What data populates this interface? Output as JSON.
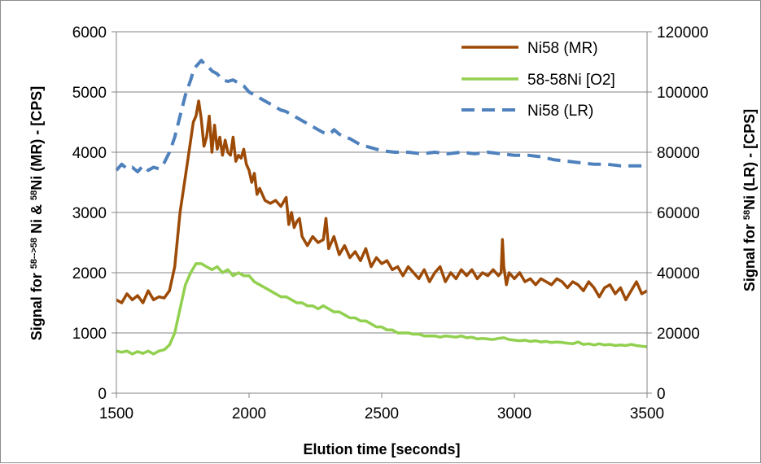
{
  "chart_data": {
    "type": "line",
    "xlabel": "Elution time [seconds]",
    "ylabel_left": [
      "Signal for ",
      "58-->58",
      " Ni  & ",
      "58",
      "Ni (MR) - [CPS]"
    ],
    "ylabel_right": [
      "Signal for ",
      "58",
      "Ni (LR) - [CPS]"
    ],
    "xlim": [
      1500,
      3500
    ],
    "ylim_left": [
      0,
      6000
    ],
    "ylim_right": [
      0,
      120000
    ],
    "x_ticks": [
      "1500",
      "2000",
      "2500",
      "3000",
      "3500"
    ],
    "y_ticks_left": [
      "0",
      "1000",
      "2000",
      "3000",
      "4000",
      "5000",
      "6000"
    ],
    "y_ticks_right": [
      "0",
      "20000",
      "40000",
      "60000",
      "80000",
      "100000",
      "120000"
    ],
    "grid": "horizontal",
    "legend_position": "top-right",
    "series": [
      {
        "name": "Ni58 (MR)",
        "axis": "left",
        "color": "#9c4a06",
        "style": "solid",
        "x": [
          1500,
          1520,
          1540,
          1560,
          1580,
          1600,
          1620,
          1640,
          1660,
          1680,
          1700,
          1720,
          1740,
          1760,
          1780,
          1790,
          1800,
          1810,
          1820,
          1830,
          1840,
          1850,
          1860,
          1870,
          1880,
          1890,
          1900,
          1910,
          1920,
          1930,
          1940,
          1950,
          1960,
          1970,
          1980,
          1990,
          2000,
          2010,
          2020,
          2030,
          2040,
          2060,
          2080,
          2100,
          2120,
          2140,
          2150,
          2160,
          2170,
          2180,
          2190,
          2200,
          2220,
          2240,
          2260,
          2280,
          2290,
          2300,
          2320,
          2340,
          2360,
          2380,
          2400,
          2420,
          2440,
          2460,
          2480,
          2500,
          2520,
          2540,
          2560,
          2580,
          2600,
          2620,
          2640,
          2660,
          2680,
          2700,
          2720,
          2740,
          2760,
          2780,
          2800,
          2820,
          2840,
          2860,
          2880,
          2900,
          2920,
          2940,
          2950,
          2955,
          2960,
          2970,
          2980,
          3000,
          3020,
          3040,
          3060,
          3080,
          3100,
          3120,
          3140,
          3160,
          3180,
          3200,
          3220,
          3240,
          3260,
          3280,
          3300,
          3320,
          3340,
          3360,
          3380,
          3400,
          3420,
          3440,
          3460,
          3480,
          3500
        ],
        "values": [
          1550,
          1500,
          1650,
          1550,
          1620,
          1500,
          1700,
          1550,
          1600,
          1580,
          1700,
          2100,
          3000,
          3600,
          4200,
          4500,
          4600,
          4850,
          4550,
          4100,
          4250,
          4600,
          4000,
          4450,
          4050,
          4250,
          3950,
          4200,
          4000,
          3950,
          4250,
          3850,
          3950,
          3900,
          4050,
          3800,
          3700,
          3500,
          3650,
          3300,
          3400,
          3200,
          3150,
          3200,
          3100,
          3250,
          2800,
          3000,
          2750,
          2850,
          2900,
          2600,
          2450,
          2600,
          2500,
          2550,
          2900,
          2400,
          2600,
          2300,
          2450,
          2250,
          2350,
          2200,
          2400,
          2100,
          2250,
          2150,
          2200,
          2050,
          2100,
          1950,
          2100,
          2000,
          1900,
          2050,
          1850,
          2000,
          2100,
          1850,
          2000,
          1900,
          2050,
          1950,
          2050,
          1900,
          2000,
          1950,
          2050,
          1950,
          2000,
          2550,
          2100,
          1800,
          2000,
          1900,
          2000,
          1850,
          1900,
          1800,
          1900,
          1850,
          1800,
          1900,
          1850,
          1750,
          1850,
          1800,
          1700,
          1850,
          1750,
          1600,
          1750,
          1800,
          1650,
          1750,
          1550,
          1700,
          1850,
          1650,
          1700
        ]
      },
      {
        "name": "58-58Ni [O2]",
        "axis": "left",
        "color": "#92d050",
        "style": "solid",
        "x": [
          1500,
          1520,
          1540,
          1560,
          1580,
          1600,
          1620,
          1640,
          1660,
          1680,
          1700,
          1720,
          1740,
          1760,
          1780,
          1800,
          1820,
          1840,
          1860,
          1880,
          1900,
          1920,
          1940,
          1960,
          1980,
          2000,
          2020,
          2040,
          2060,
          2080,
          2100,
          2120,
          2140,
          2160,
          2180,
          2200,
          2220,
          2240,
          2260,
          2280,
          2300,
          2320,
          2340,
          2360,
          2380,
          2400,
          2420,
          2440,
          2460,
          2480,
          2500,
          2520,
          2540,
          2560,
          2580,
          2600,
          2620,
          2640,
          2660,
          2680,
          2700,
          2720,
          2740,
          2760,
          2780,
          2800,
          2820,
          2840,
          2860,
          2880,
          2900,
          2920,
          2940,
          2960,
          2980,
          3000,
          3020,
          3040,
          3060,
          3080,
          3100,
          3120,
          3140,
          3160,
          3180,
          3200,
          3220,
          3240,
          3260,
          3280,
          3300,
          3320,
          3340,
          3360,
          3380,
          3400,
          3420,
          3440,
          3460,
          3480,
          3500
        ],
        "values": [
          700,
          680,
          700,
          650,
          690,
          660,
          700,
          650,
          700,
          720,
          800,
          1000,
          1400,
          1800,
          2000,
          2150,
          2150,
          2100,
          2050,
          2100,
          2000,
          2050,
          1950,
          2000,
          1950,
          1950,
          1850,
          1800,
          1750,
          1700,
          1650,
          1600,
          1600,
          1550,
          1500,
          1500,
          1450,
          1450,
          1400,
          1450,
          1400,
          1350,
          1350,
          1300,
          1250,
          1250,
          1200,
          1200,
          1150,
          1100,
          1100,
          1050,
          1050,
          1000,
          1000,
          1000,
          980,
          980,
          950,
          950,
          950,
          930,
          950,
          940,
          930,
          950,
          920,
          930,
          900,
          910,
          900,
          890,
          910,
          920,
          890,
          880,
          870,
          880,
          860,
          870,
          850,
          860,
          840,
          850,
          840,
          830,
          820,
          850,
          810,
          820,
          800,
          820,
          800,
          810,
          790,
          800,
          790,
          810,
          790,
          780,
          770
        ]
      },
      {
        "name": "Ni58 (LR)",
        "axis": "right",
        "color": "#4f81bd",
        "style": "dashed",
        "x": [
          1500,
          1520,
          1540,
          1560,
          1580,
          1600,
          1620,
          1640,
          1660,
          1680,
          1700,
          1720,
          1740,
          1760,
          1780,
          1790,
          1800,
          1810,
          1820,
          1830,
          1840,
          1850,
          1860,
          1880,
          1900,
          1920,
          1940,
          1960,
          1980,
          2000,
          2020,
          2040,
          2060,
          2080,
          2100,
          2120,
          2140,
          2160,
          2180,
          2200,
          2220,
          2240,
          2260,
          2280,
          2300,
          2310,
          2320,
          2340,
          2360,
          2380,
          2400,
          2420,
          2440,
          2460,
          2480,
          2500,
          2550,
          2600,
          2650,
          2700,
          2750,
          2800,
          2850,
          2900,
          2950,
          3000,
          3050,
          3100,
          3150,
          3200,
          3250,
          3300,
          3350,
          3400,
          3450,
          3500
        ],
        "values": [
          74000,
          76000,
          74500,
          75000,
          73500,
          75500,
          74000,
          75000,
          74500,
          76500,
          80000,
          85000,
          92000,
          99000,
          104000,
          107000,
          108500,
          109500,
          110500,
          109500,
          108500,
          108000,
          107000,
          106000,
          104000,
          103500,
          104000,
          103000,
          102000,
          100000,
          99000,
          98000,
          97000,
          96000,
          95000,
          94000,
          93500,
          92500,
          91500,
          90500,
          89500,
          88500,
          87500,
          86500,
          86000,
          86500,
          87500,
          86000,
          85000,
          84500,
          83500,
          82500,
          82000,
          81500,
          81000,
          80500,
          80000,
          80000,
          79500,
          80000,
          79500,
          80000,
          79500,
          80000,
          79500,
          79000,
          79000,
          78500,
          77500,
          77000,
          76500,
          76000,
          76000,
          75500,
          75500,
          75500
        ]
      }
    ]
  }
}
